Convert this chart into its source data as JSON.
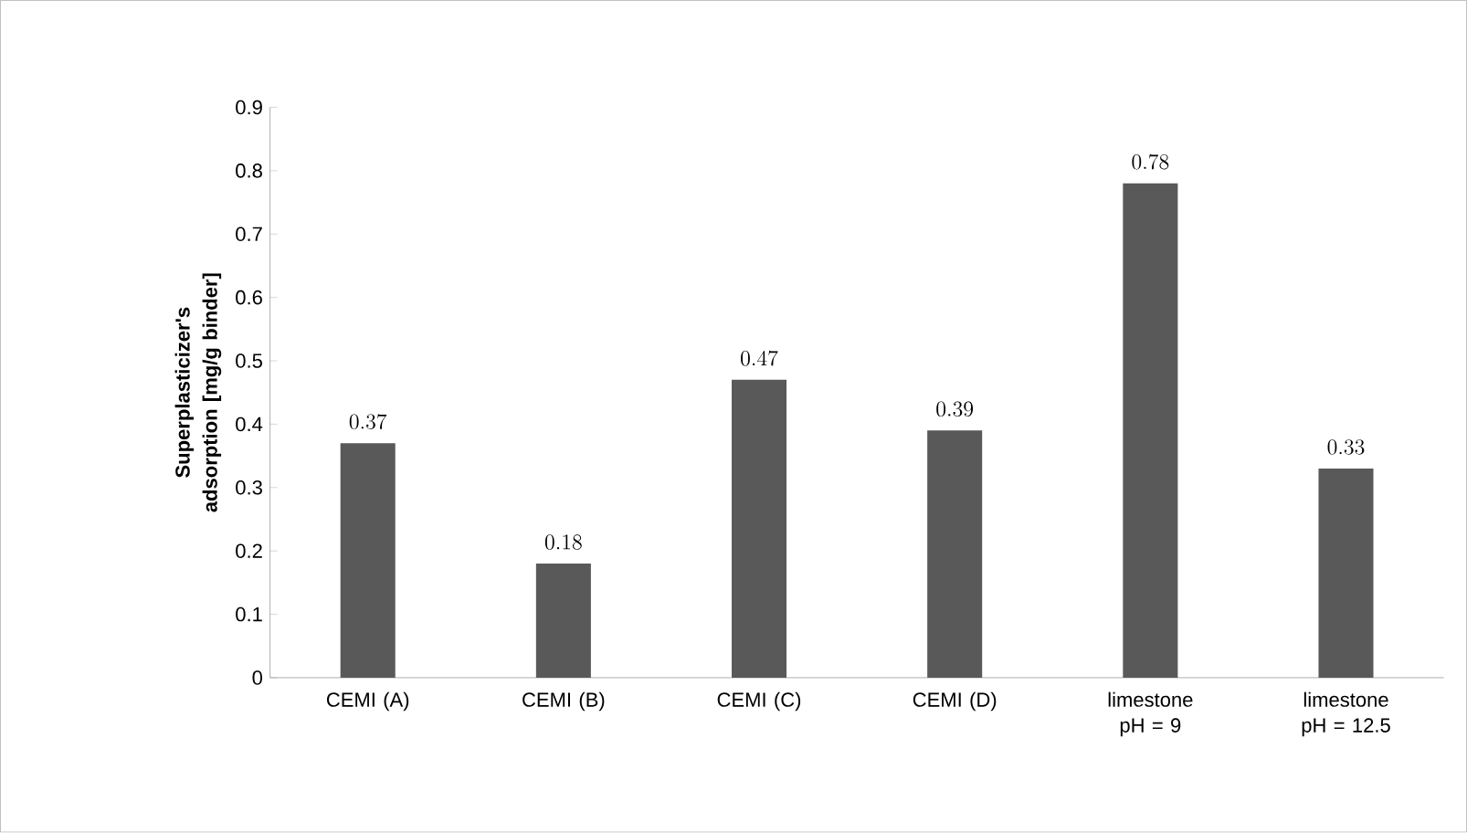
{
  "chart_data": {
    "type": "bar",
    "ylabel": "Superplasticizer's adsorption [mg/g binder]",
    "categories": [
      "CEMI (A)",
      "CEMI (B)",
      "CEMI (C)",
      "CEMI (D)",
      "limestone pH = 9",
      "limestone pH = 12.5"
    ],
    "values": [
      0.37,
      0.18,
      0.47,
      0.39,
      0.78,
      0.33
    ],
    "color": "#595959",
    "ylim": [
      0,
      0.9
    ],
    "yticks": [
      0,
      0.1,
      0.2,
      0.3,
      0.4,
      0.5,
      0.6,
      0.7,
      0.8,
      0.9
    ],
    "data_labels": true
  }
}
